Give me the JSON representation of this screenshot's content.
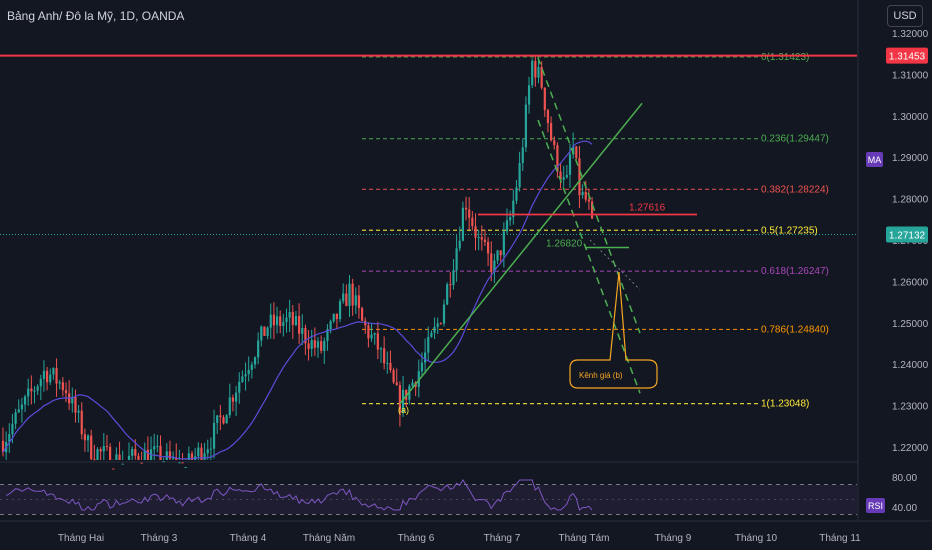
{
  "header": {
    "title": "Bảng Anh/ Đô la Mỹ, 1D, OANDA",
    "currency_button": "USD"
  },
  "colors": {
    "background": "#131722",
    "candle_up": "#26a69a",
    "candle_down": "#ef5350",
    "ma_line": "#5b4cdb",
    "trend_line": "#4caf50",
    "resistance_line": "#f23645",
    "current_price_line": "#26a69a",
    "annotation": "#f5a623",
    "rsi_line": "#7e57c2"
  },
  "chart_data": [
    {
      "type": "candlestick",
      "title": "Bảng Anh/ Đô la Mỹ, 1D, OANDA",
      "x_tick_labels": [
        "Tháng Hai",
        "Tháng 3",
        "Tháng 4",
        "Tháng Năm",
        "Tháng 6",
        "Tháng 7",
        "Tháng Tám",
        "Tháng 9",
        "Tháng 10",
        "Tháng 11"
      ],
      "y_tick_labels": [
        "1.32000",
        "1.31000",
        "1.30000",
        "1.29000",
        "1.28000",
        "1.27000",
        "1.26000",
        "1.25000",
        "1.24000",
        "1.23000",
        "1.22000"
      ],
      "ylim": [
        1.2155,
        1.3235
      ],
      "current_price": 1.27132,
      "resistance_level": 1.31453,
      "fibonacci_levels": [
        {
          "label": "0(1.31423)",
          "value": 1.31423,
          "color": "#4caf50"
        },
        {
          "label": "0.236(1.29447)",
          "value": 1.29447,
          "color": "#4caf50"
        },
        {
          "label": "0.382(1.28224)",
          "value": 1.28224,
          "color": "#ef5350"
        },
        {
          "label": "0.5(1.27235)",
          "value": 1.27235,
          "color": "#ffeb3b"
        },
        {
          "label": "0.618(1.26247)",
          "value": 1.26247,
          "color": "#ab47bc"
        },
        {
          "label": "0.786(1.24840)",
          "value": 1.2484,
          "color": "#ff9800"
        },
        {
          "label": "1(1.23048)",
          "value": 1.23048,
          "color": "#ffeb3b"
        }
      ],
      "annotations": {
        "level_upper": "1.27616",
        "level_lower": "1.26820",
        "wave_label": "(a)",
        "callout": "Kênh giá (b)",
        "ma_badge": "MA",
        "resistance_badge": "1.31453",
        "price_badge": "1.27132"
      }
    },
    {
      "type": "line",
      "title": "RSI",
      "y_tick_labels": [
        "80.00",
        "40.00"
      ],
      "ylim": [
        30,
        90
      ],
      "bands": [
        70,
        30
      ],
      "badge": "RSI"
    }
  ]
}
